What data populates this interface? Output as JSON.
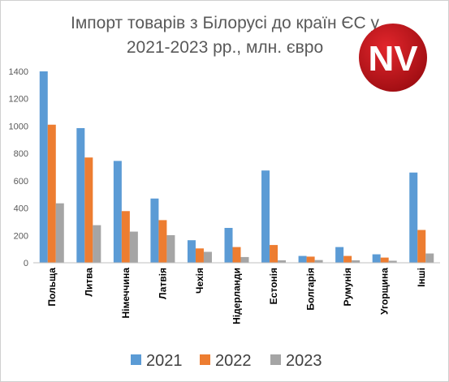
{
  "chart_data": {
    "type": "bar",
    "title_lines": [
      "Імпорт товарів з Білорусі до країн ЄС у",
      "2021-2023 рр., млн. євро"
    ],
    "categories": [
      "Польща",
      "Литва",
      "Німеччина",
      "Латвія",
      "Чехія",
      "Нідерланди",
      "Естонія",
      "Болгарія",
      "Румунія",
      "Угорщина",
      "Інші"
    ],
    "series": [
      {
        "name": "2021",
        "color": "#5b9bd5",
        "values": [
          1400,
          985,
          745,
          470,
          165,
          255,
          675,
          50,
          115,
          62,
          660
        ]
      },
      {
        "name": "2022",
        "color": "#ed7d31",
        "values": [
          1010,
          770,
          378,
          312,
          105,
          115,
          130,
          45,
          50,
          38,
          240
        ]
      },
      {
        "name": "2023",
        "color": "#a5a5a5",
        "values": [
          435,
          275,
          228,
          202,
          80,
          42,
          18,
          20,
          18,
          15,
          68
        ]
      }
    ],
    "yticks": [
      0,
      200,
      400,
      600,
      800,
      1000,
      1200,
      1400
    ],
    "ylim": [
      0,
      1400
    ],
    "grid": false,
    "legend": "bottom"
  },
  "logo": {
    "text": "NV",
    "color": "#c4161c"
  }
}
